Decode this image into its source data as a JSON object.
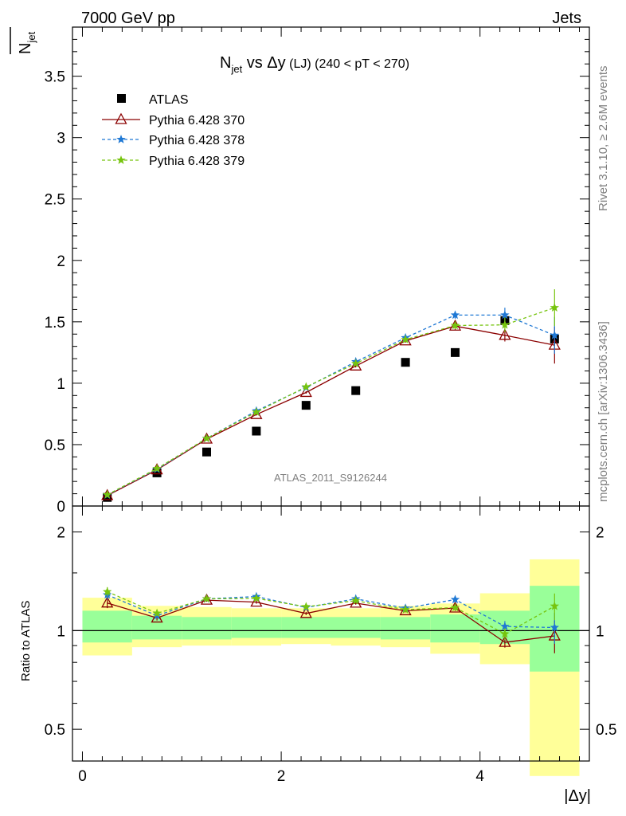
{
  "header": {
    "left": "7000 GeV pp",
    "right": "Jets",
    "side_top": "Rivet 3.1.10, ≥ 2.6M events",
    "side_bottom": "mcplots.cern.ch [arXiv:1306.3436]"
  },
  "top_panel": {
    "title_main": "N",
    "title_sub": "jet",
    "title_vs": " vs Δy",
    "title_lj": " (LJ)",
    "title_range": " (240 < pT < 270)",
    "ylabel": "N",
    "ylabel_sub": "jet",
    "watermark": "ATLAS_2011_S9126244",
    "yticks": [
      "0",
      "0.5",
      "1",
      "1.5",
      "2",
      "2.5",
      "3",
      "3.5"
    ]
  },
  "bottom_panel": {
    "ylabel": "Ratio to ATLAS",
    "yticks": [
      "0.5",
      "1",
      "2"
    ],
    "xticks": [
      "0",
      "2",
      "4"
    ],
    "xlabel": "|Δy|"
  },
  "chart_data": {
    "type": "scatter",
    "x": [
      0.25,
      0.75,
      1.25,
      1.75,
      2.25,
      2.75,
      3.25,
      3.75,
      4.25,
      4.75
    ],
    "xlim": [
      -0.1,
      5.1
    ],
    "top_ylim": [
      0,
      3.9
    ],
    "ratio_ylim": [
      0.4,
      2.4
    ],
    "ratio_scale": "log",
    "series": [
      {
        "name": "ATLAS",
        "marker": "square",
        "color": "#000000",
        "values": [
          0.07,
          0.27,
          0.44,
          0.61,
          0.82,
          0.94,
          1.17,
          1.25,
          1.51,
          1.36
        ]
      },
      {
        "name": "Pythia 6.428 370",
        "marker": "triangle-open",
        "color": "#8b0000",
        "values": [
          0.085,
          0.295,
          0.545,
          0.745,
          0.925,
          1.14,
          1.345,
          1.465,
          1.39,
          1.31
        ],
        "errors": [
          0.003,
          0.005,
          0.006,
          0.008,
          0.01,
          0.012,
          0.015,
          0.03,
          0.05,
          0.15
        ]
      },
      {
        "name": "Pythia 6.428 378",
        "marker": "star",
        "color": "#1f78d4",
        "dashed": true,
        "values": [
          0.09,
          0.3,
          0.55,
          0.775,
          0.965,
          1.175,
          1.37,
          1.555,
          1.555,
          1.39
        ],
        "errors": [
          0.003,
          0.005,
          0.006,
          0.008,
          0.01,
          0.012,
          0.015,
          0.03,
          0.06,
          0.15
        ]
      },
      {
        "name": "Pythia 6.428 379",
        "marker": "star",
        "color": "#76c40e",
        "dashed": true,
        "values": [
          0.092,
          0.305,
          0.55,
          0.765,
          0.97,
          1.16,
          1.355,
          1.47,
          1.475,
          1.615
        ],
        "errors": [
          0.003,
          0.005,
          0.006,
          0.008,
          0.01,
          0.012,
          0.015,
          0.03,
          0.06,
          0.15
        ]
      }
    ],
    "ratio_bands": {
      "yellow": [
        [
          0.84,
          1.26
        ],
        [
          0.89,
          1.19
        ],
        [
          0.9,
          1.18
        ],
        [
          0.9,
          1.17
        ],
        [
          0.91,
          1.17
        ],
        [
          0.9,
          1.17
        ],
        [
          0.89,
          1.19
        ],
        [
          0.85,
          1.21
        ],
        [
          0.79,
          1.3
        ],
        [
          0.36,
          1.65
        ]
      ],
      "green": [
        [
          0.92,
          1.15
        ],
        [
          0.94,
          1.11
        ],
        [
          0.94,
          1.1
        ],
        [
          0.95,
          1.1
        ],
        [
          0.95,
          1.1
        ],
        [
          0.95,
          1.1
        ],
        [
          0.94,
          1.1
        ],
        [
          0.92,
          1.12
        ],
        [
          0.91,
          1.15
        ],
        [
          0.75,
          1.37
        ]
      ]
    }
  }
}
